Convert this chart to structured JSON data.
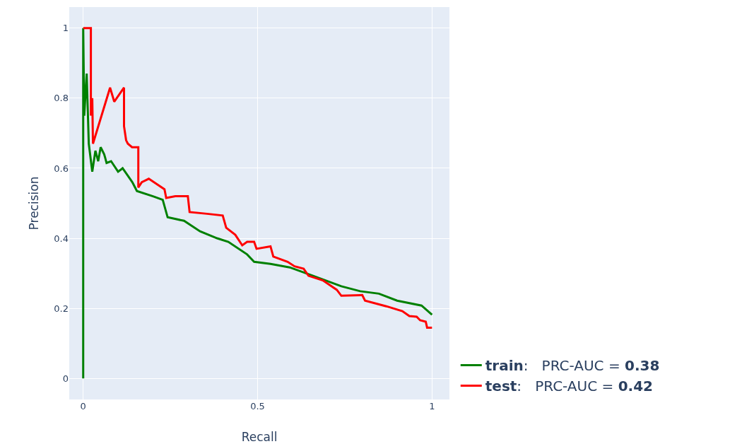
{
  "chart_data": {
    "type": "line",
    "xlabel": "Recall",
    "ylabel": "Precision",
    "xlim": [
      -0.04,
      1.05
    ],
    "ylim": [
      -0.06,
      1.06
    ],
    "xticks": [
      0,
      0.5,
      1
    ],
    "yticks": [
      0,
      0.2,
      0.4,
      0.6,
      0.8,
      1
    ],
    "grid": true,
    "legend": "bottom right",
    "marker": "none",
    "line_style": "solid",
    "series": [
      {
        "name": "train:   PRC-AUC = 0.38",
        "color": "#008000",
        "x": [
          0,
          0,
          0.003,
          0.01,
          0.016,
          0.026,
          0.035,
          0.043,
          0.05,
          0.06,
          0.063,
          0.067,
          0.08,
          0.1,
          0.113,
          0.141,
          0.154,
          0.2,
          0.228,
          0.242,
          0.289,
          0.335,
          0.384,
          0.416,
          0.47,
          0.49,
          0.537,
          0.592,
          0.659,
          0.74,
          0.794,
          0.848,
          0.9,
          0.97,
          1.0
        ],
        "values": [
          0,
          1,
          0.75,
          0.87,
          0.67,
          0.59,
          0.65,
          0.62,
          0.66,
          0.64,
          0.63,
          0.615,
          0.62,
          0.59,
          0.6,
          0.56,
          0.535,
          0.52,
          0.51,
          0.46,
          0.45,
          0.42,
          0.4,
          0.39,
          0.354,
          0.333,
          0.327,
          0.317,
          0.293,
          0.263,
          0.249,
          0.242,
          0.222,
          0.208,
          0.182
        ]
      },
      {
        "name": "test:   PRC-AUC = 0.42",
        "color": "#ff0000",
        "x": [
          0,
          0.022,
          0.022,
          0.026,
          0.028,
          0.077,
          0.089,
          0.117,
          0.117,
          0.123,
          0.128,
          0.14,
          0.158,
          0.158,
          0.168,
          0.188,
          0.233,
          0.238,
          0.264,
          0.3,
          0.305,
          0.355,
          0.4,
          0.41,
          0.436,
          0.456,
          0.47,
          0.49,
          0.497,
          0.537,
          0.545,
          0.586,
          0.606,
          0.632,
          0.646,
          0.687,
          0.727,
          0.74,
          0.8,
          0.808,
          0.869,
          0.915,
          0.935,
          0.956,
          0.966,
          0.982,
          0.986,
          1.0
        ],
        "values": [
          1,
          1,
          0.75,
          0.8,
          0.67,
          0.83,
          0.79,
          0.83,
          0.72,
          0.68,
          0.67,
          0.66,
          0.66,
          0.545,
          0.56,
          0.57,
          0.54,
          0.515,
          0.52,
          0.52,
          0.475,
          0.47,
          0.465,
          0.43,
          0.41,
          0.38,
          0.39,
          0.39,
          0.37,
          0.377,
          0.348,
          0.333,
          0.32,
          0.313,
          0.293,
          0.28,
          0.253,
          0.236,
          0.238,
          0.222,
          0.206,
          0.192,
          0.178,
          0.176,
          0.166,
          0.162,
          0.145,
          0.145
        ]
      }
    ]
  }
}
